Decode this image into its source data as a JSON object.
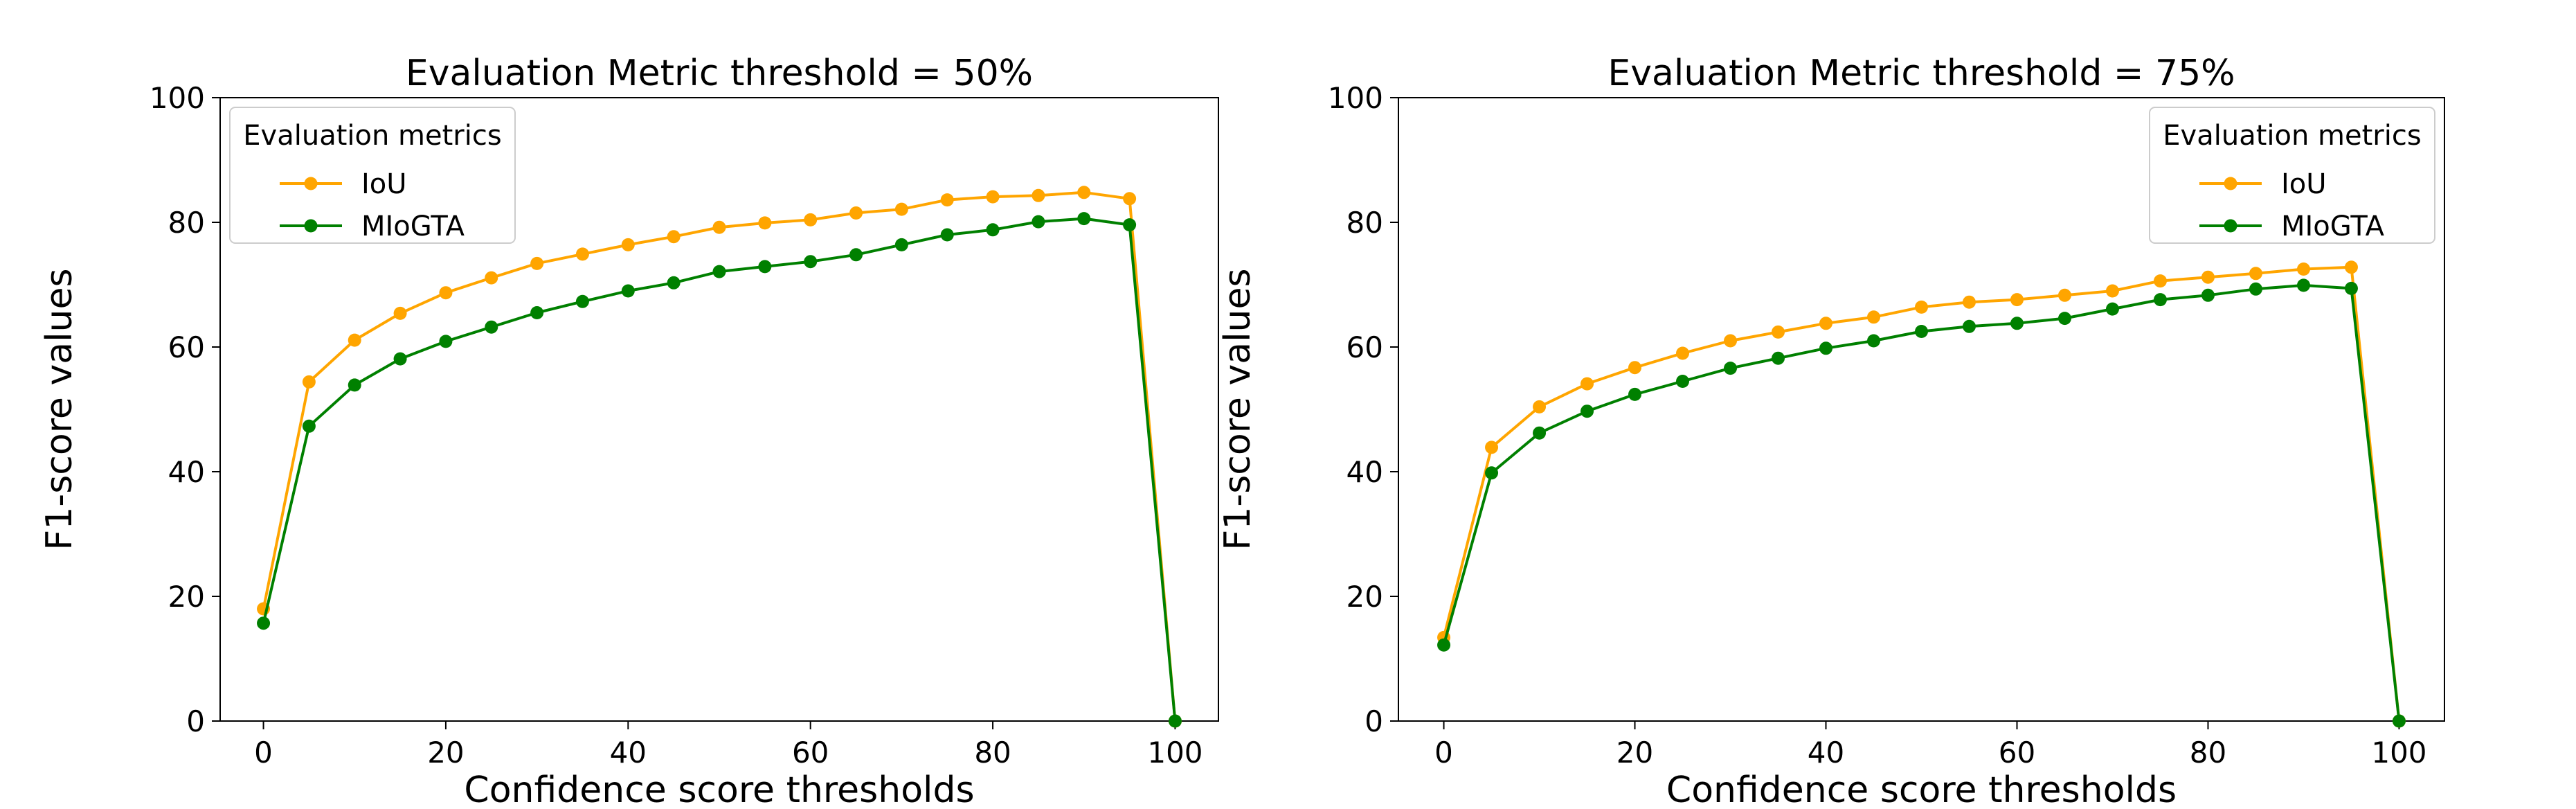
{
  "chart_data": [
    {
      "type": "line",
      "title": "Evaluation Metric threshold = 50%",
      "xlabel": "Confidence score thresholds",
      "ylabel": "F1-score values",
      "xlim": [
        -4.75,
        104.75
      ],
      "ylim": [
        0,
        100
      ],
      "xticks": [
        0,
        20,
        40,
        60,
        80,
        100
      ],
      "yticks": [
        0,
        20,
        40,
        60,
        80,
        100
      ],
      "grid": false,
      "legend": {
        "title": "Evaluation metrics",
        "placement": "top-left"
      },
      "x": [
        0,
        5,
        10,
        15,
        20,
        25,
        30,
        35,
        40,
        45,
        50,
        55,
        60,
        65,
        70,
        75,
        80,
        85,
        90,
        95,
        100
      ],
      "series": [
        {
          "name": "IoU",
          "color": "#FFA500",
          "values": [
            18.0,
            54.4,
            61.1,
            65.4,
            68.7,
            71.1,
            73.4,
            74.9,
            76.4,
            77.7,
            79.2,
            79.9,
            80.4,
            81.5,
            82.1,
            83.6,
            84.1,
            84.3,
            84.8,
            83.8,
            0
          ]
        },
        {
          "name": "MIoGTA",
          "color": "#008000",
          "values": [
            15.7,
            47.3,
            53.9,
            58.1,
            60.9,
            63.2,
            65.5,
            67.3,
            69.0,
            70.3,
            72.1,
            72.9,
            73.7,
            74.8,
            76.4,
            78.0,
            78.8,
            80.1,
            80.6,
            79.6,
            0
          ]
        }
      ]
    },
    {
      "type": "line",
      "title": "Evaluation Metric threshold = 75%",
      "xlabel": "Confidence score thresholds",
      "ylabel": "F1-score values",
      "xlim": [
        -4.75,
        104.75
      ],
      "ylim": [
        0,
        100
      ],
      "xticks": [
        0,
        20,
        40,
        60,
        80,
        100
      ],
      "yticks": [
        0,
        20,
        40,
        60,
        80,
        100
      ],
      "grid": false,
      "legend": {
        "title": "Evaluation metrics",
        "placement": "top-right"
      },
      "x": [
        0,
        5,
        10,
        15,
        20,
        25,
        30,
        35,
        40,
        45,
        50,
        55,
        60,
        65,
        70,
        75,
        80,
        85,
        90,
        95,
        100
      ],
      "series": [
        {
          "name": "IoU",
          "color": "#FFA500",
          "values": [
            13.4,
            43.9,
            50.4,
            54.1,
            56.7,
            59.0,
            61.0,
            62.4,
            63.8,
            64.8,
            66.4,
            67.2,
            67.6,
            68.3,
            69.0,
            70.6,
            71.2,
            71.8,
            72.5,
            72.8,
            0
          ]
        },
        {
          "name": "MIoGTA",
          "color": "#008000",
          "values": [
            12.2,
            39.8,
            46.2,
            49.7,
            52.4,
            54.5,
            56.6,
            58.2,
            59.8,
            61.0,
            62.5,
            63.3,
            63.8,
            64.6,
            66.1,
            67.6,
            68.3,
            69.3,
            69.9,
            69.4,
            0
          ]
        }
      ]
    }
  ]
}
